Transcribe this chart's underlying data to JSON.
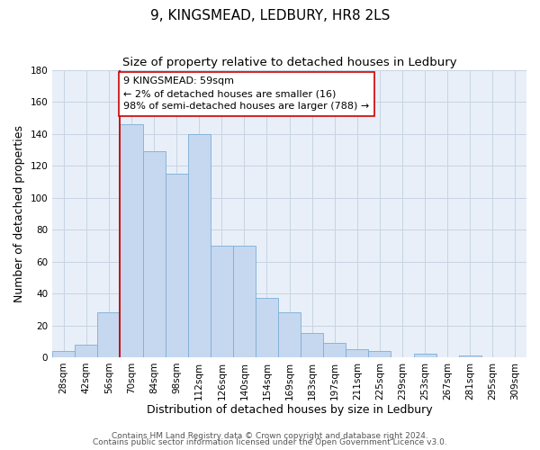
{
  "title": "9, KINGSMEAD, LEDBURY, HR8 2LS",
  "subtitle": "Size of property relative to detached houses in Ledbury",
  "xlabel": "Distribution of detached houses by size in Ledbury",
  "ylabel": "Number of detached properties",
  "bar_labels": [
    "28sqm",
    "42sqm",
    "56sqm",
    "70sqm",
    "84sqm",
    "98sqm",
    "112sqm",
    "126sqm",
    "140sqm",
    "154sqm",
    "169sqm",
    "183sqm",
    "197sqm",
    "211sqm",
    "225sqm",
    "239sqm",
    "253sqm",
    "267sqm",
    "281sqm",
    "295sqm",
    "309sqm"
  ],
  "bar_values": [
    4,
    8,
    28,
    146,
    129,
    115,
    140,
    70,
    70,
    37,
    28,
    15,
    9,
    5,
    4,
    0,
    2,
    0,
    1,
    0,
    0
  ],
  "bar_color": "#c5d8f0",
  "bar_edge_color": "#7bafd4",
  "vline_x": 2,
  "vline_color": "#cc0000",
  "annotation_title": "9 KINGSMEAD: 59sqm",
  "annotation_line1": "← 2% of detached houses are smaller (16)",
  "annotation_line2": "98% of semi-detached houses are larger (788) →",
  "annotation_box_color": "#ffffff",
  "annotation_box_edge": "#cc0000",
  "ylim": [
    0,
    180
  ],
  "yticks": [
    0,
    20,
    40,
    60,
    80,
    100,
    120,
    140,
    160,
    180
  ],
  "footer1": "Contains HM Land Registry data © Crown copyright and database right 2024.",
  "footer2": "Contains public sector information licensed under the Open Government Licence v3.0.",
  "title_fontsize": 11,
  "subtitle_fontsize": 9.5,
  "axis_label_fontsize": 9,
  "tick_fontsize": 7.5,
  "annotation_fontsize": 8,
  "footer_fontsize": 6.5,
  "bg_axes": "#e8eff8",
  "grid_color": "#c8d4e4"
}
